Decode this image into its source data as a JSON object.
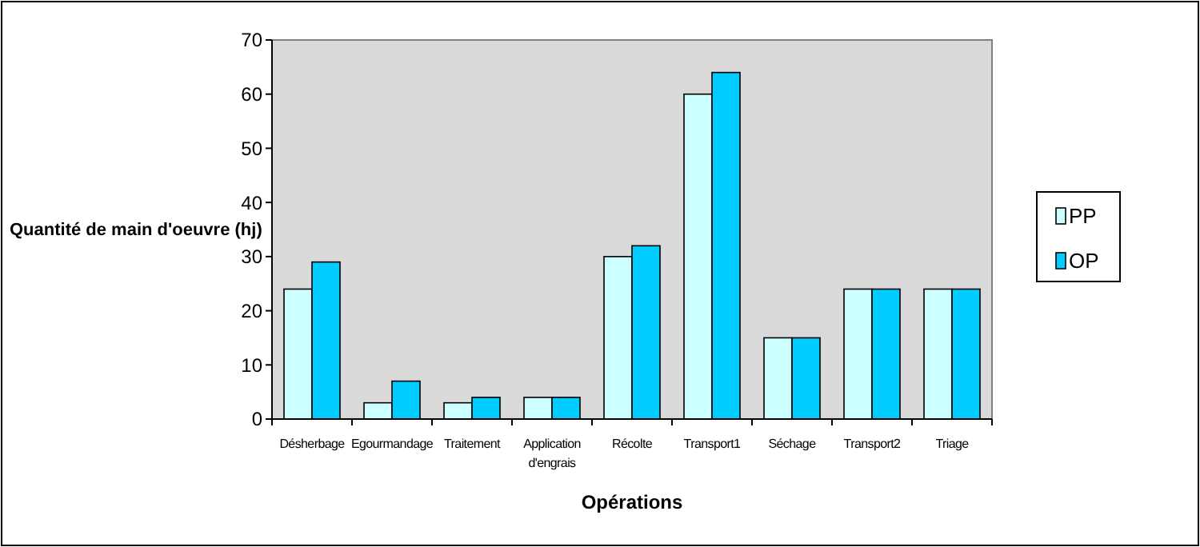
{
  "chart_data": {
    "type": "bar",
    "xlabel": "Opérations",
    "ylabel": "Quantité de main d'oeuvre (hj)",
    "categories": [
      "Désherbage",
      "Egourmandage",
      "Traitement",
      "Application d'engrais",
      "Récolte",
      "Transport1",
      "Séchage",
      "Transport2",
      "Triage"
    ],
    "series": [
      {
        "name": "PP",
        "color": "#ccffff",
        "values": [
          24,
          3,
          3,
          4,
          30,
          60,
          15,
          24,
          24
        ]
      },
      {
        "name": "OP",
        "color": "#00ccff",
        "values": [
          29,
          7,
          4,
          4,
          32,
          64,
          15,
          24,
          24
        ]
      }
    ],
    "ylim": [
      0,
      70
    ],
    "yticks": [
      0,
      10,
      20,
      30,
      40,
      50,
      60,
      70
    ],
    "grid": false,
    "legend": "right"
  }
}
